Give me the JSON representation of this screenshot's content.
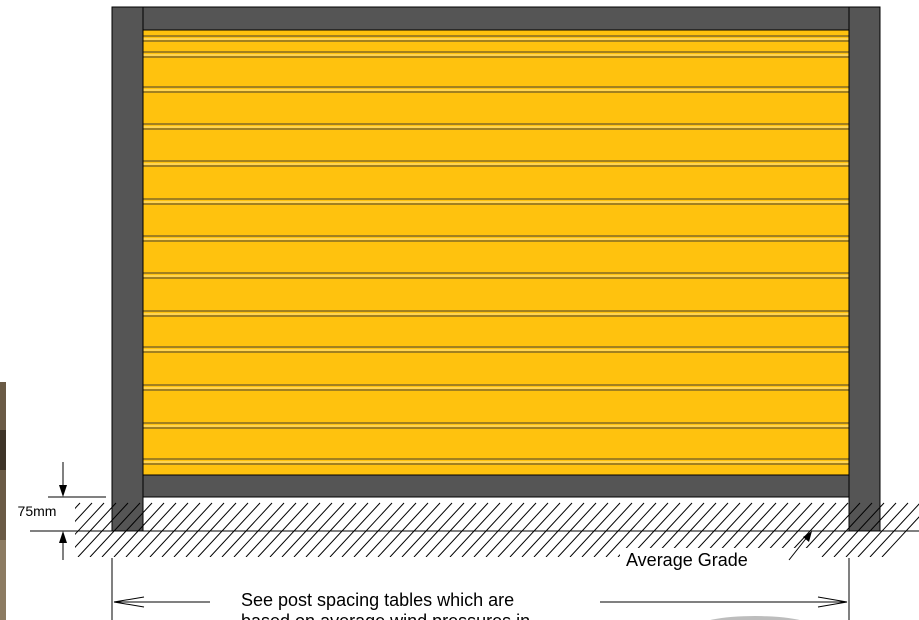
{
  "colors": {
    "post": "#555555",
    "panel": "#ffc20e",
    "rail": "#555555",
    "line": "#000000"
  },
  "labels": {
    "clearance": "75mm",
    "grade": "Average Grade",
    "note_line1": "See post spacing tables which are",
    "note_line2": "based on average wind pressures in"
  },
  "icons": {
    "left_arrow": "arrow-left-icon",
    "right_arrow": "arrow-right-icon",
    "up_arrow": "arrow-up-icon",
    "down_arrow": "arrow-down-icon"
  }
}
